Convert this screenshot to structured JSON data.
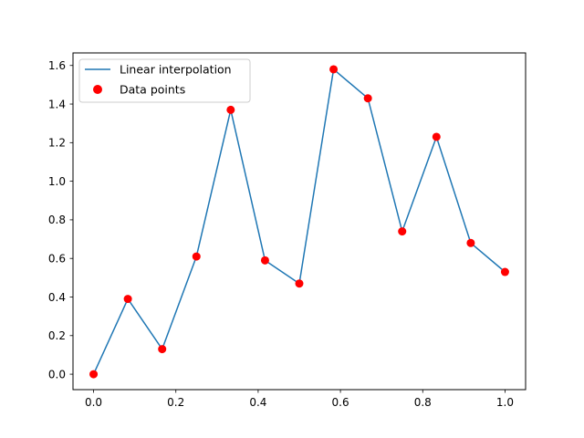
{
  "chart_data": {
    "type": "line",
    "title": "",
    "xlabel": "",
    "ylabel": "",
    "xlim": [
      -0.05,
      1.05
    ],
    "ylim": [
      -0.08,
      1.665
    ],
    "x_ticks": [
      0.0,
      0.2,
      0.4,
      0.6,
      0.8,
      1.0
    ],
    "x_tick_labels": [
      "0.0",
      "0.2",
      "0.4",
      "0.6",
      "0.8",
      "1.0"
    ],
    "y_ticks": [
      0.0,
      0.2,
      0.4,
      0.6,
      0.8,
      1.0,
      1.2,
      1.4,
      1.6
    ],
    "y_tick_labels": [
      "0.0",
      "0.2",
      "0.4",
      "0.6",
      "0.8",
      "1.0",
      "1.2",
      "1.4",
      "1.6"
    ],
    "grid": false,
    "legend_position": "top-left",
    "x": [
      0.0,
      0.0833,
      0.1667,
      0.25,
      0.3333,
      0.4167,
      0.5,
      0.5833,
      0.6667,
      0.75,
      0.8333,
      0.9167,
      1.0
    ],
    "series": [
      {
        "name": "Linear interpolation",
        "kind": "line",
        "color": "#1f77b4",
        "y": [
          0.0,
          0.39,
          0.13,
          0.61,
          1.37,
          0.59,
          0.47,
          1.58,
          1.43,
          0.74,
          1.23,
          0.68,
          0.53
        ]
      },
      {
        "name": "Data points",
        "kind": "scatter",
        "color": "#ff0000",
        "y": [
          0.0,
          0.39,
          0.13,
          0.61,
          1.37,
          0.59,
          0.47,
          1.58,
          1.43,
          0.74,
          1.23,
          0.68,
          0.53
        ]
      }
    ]
  }
}
